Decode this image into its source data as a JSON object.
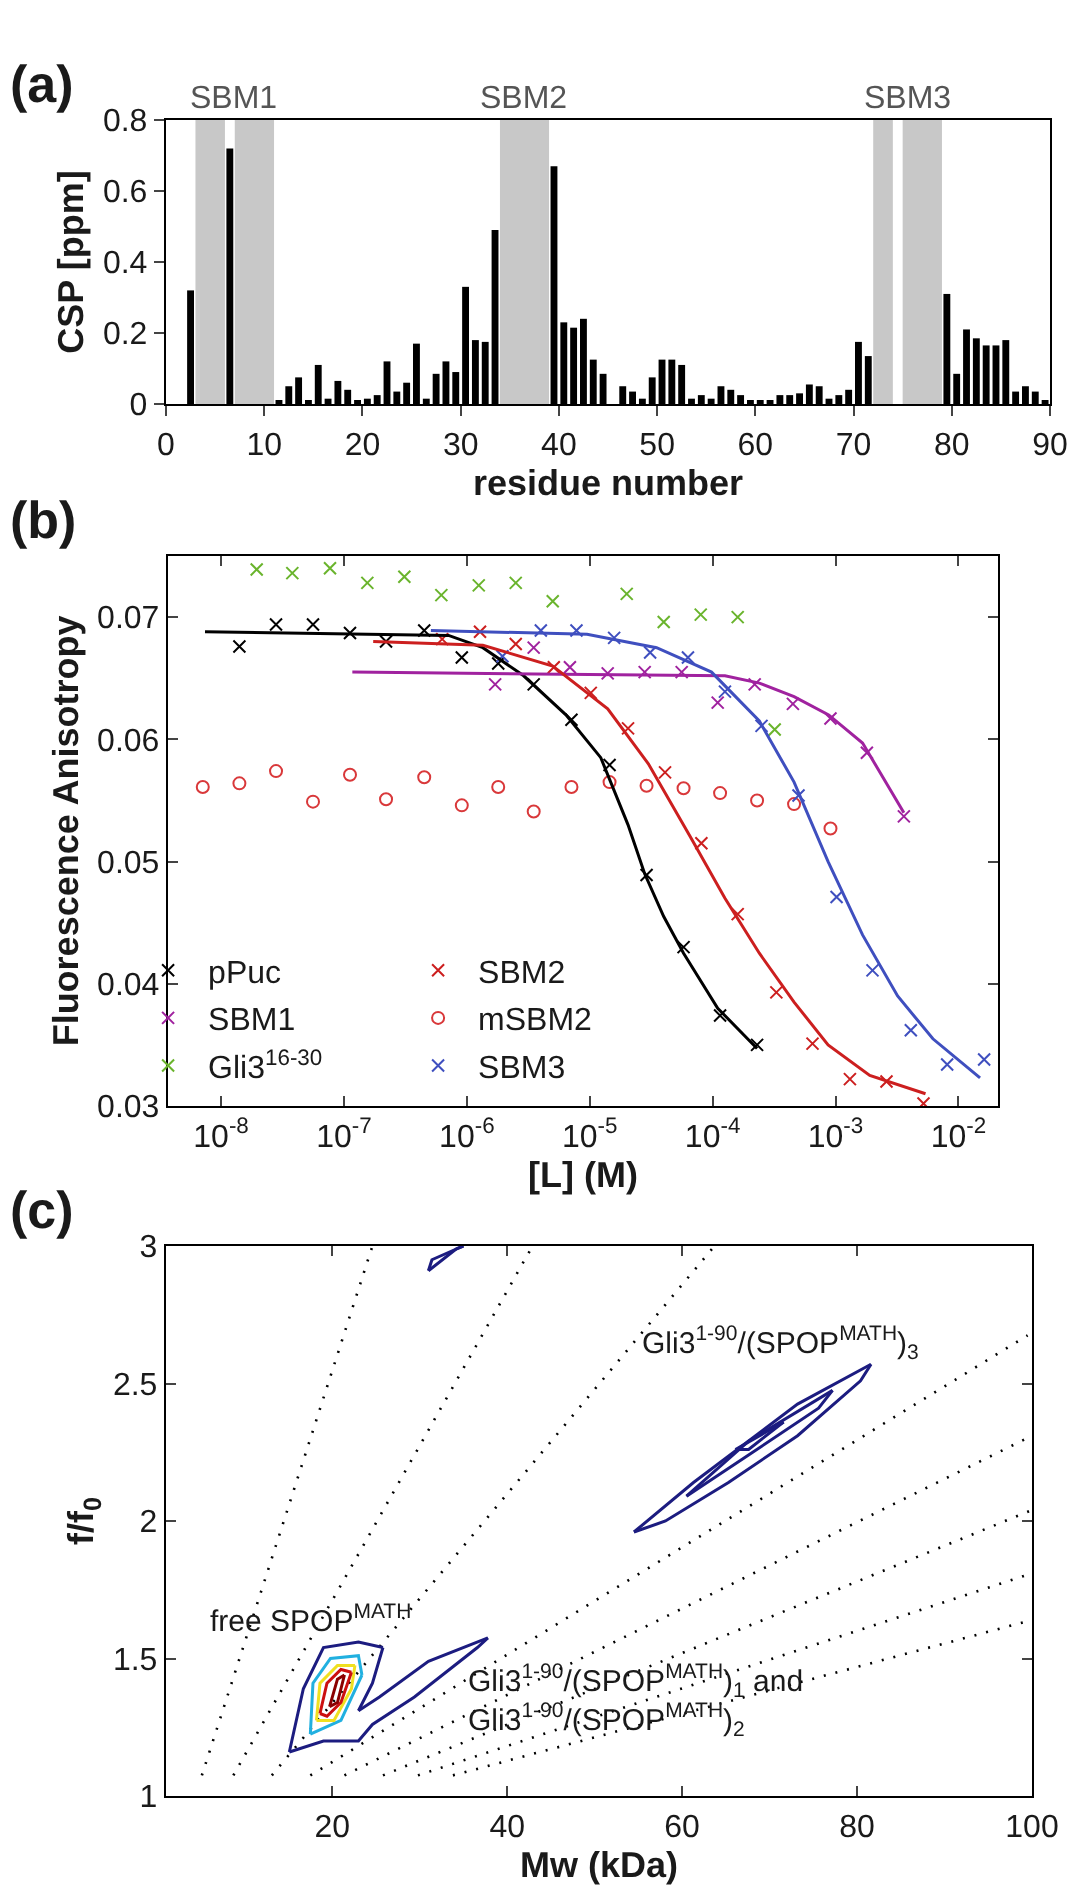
{
  "chart_data": [
    {
      "type": "bar",
      "annotations": [
        "(a)",
        {
          "text": "SBM1",
          "x": 7,
          "y": 0.8
        },
        {
          "text": "SBM2",
          "x": 36.5,
          "y": 0.8
        },
        {
          "text": "SBM3",
          "x": 75.5,
          "y": 0.8
        }
      ],
      "xlabel": "residue number",
      "ylabel": "CSP [ppm]",
      "x": [
        2.5,
        6.5,
        11.5,
        12.5,
        13.5,
        14.5,
        15.5,
        16.5,
        17.5,
        18.5,
        19.5,
        20.5,
        21.5,
        22.5,
        23.5,
        24.5,
        25.5,
        26.5,
        27.5,
        28.5,
        29.5,
        30.5,
        31.5,
        32.5,
        33.5,
        39.5,
        40.5,
        41.5,
        42.5,
        43.5,
        44.5,
        46.5,
        47.5,
        48.5,
        49.5,
        50.5,
        51.5,
        52.5,
        53.5,
        54.5,
        55.5,
        56.5,
        57.5,
        58.5,
        59.5,
        60.5,
        61.5,
        62.5,
        63.5,
        64.5,
        65.5,
        66.5,
        67.5,
        68.5,
        69.5,
        70.5,
        71.5,
        79.5,
        80.5,
        81.5,
        82.5,
        83.5,
        84.5,
        85.5,
        86.5,
        87.5,
        88.5,
        89.5
      ],
      "values": [
        0.32,
        0.72,
        0.01,
        0.05,
        0.075,
        0.01,
        0.11,
        0.015,
        0.065,
        0.04,
        0.008,
        0.015,
        0.025,
        0.12,
        0.035,
        0.06,
        0.17,
        0.015,
        0.085,
        0.12,
        0.09,
        0.33,
        0.18,
        0.175,
        0.49,
        0.67,
        0.23,
        0.215,
        0.24,
        0.125,
        0.085,
        0.05,
        0.035,
        0.015,
        0.075,
        0.125,
        0.125,
        0.11,
        0.015,
        0.025,
        0.015,
        0.05,
        0.04,
        0.025,
        0.01,
        0.008,
        0.008,
        0.025,
        0.025,
        0.03,
        0.055,
        0.05,
        0.015,
        0.025,
        0.04,
        0.175,
        0.135,
        0.31,
        0.085,
        0.21,
        0.185,
        0.165,
        0.165,
        0.18,
        0.035,
        0.05,
        0.035,
        0.01
      ],
      "color": "#000000",
      "bands": [
        {
          "axis": "x",
          "from": 3,
          "to": 6,
          "color": "#c8c8c8"
        },
        {
          "axis": "x",
          "from": 7,
          "to": 11,
          "color": "#c8c8c8"
        },
        {
          "axis": "x",
          "from": 34,
          "to": 39,
          "color": "#c8c8c8"
        },
        {
          "axis": "x",
          "from": 72,
          "to": 74,
          "color": "#c8c8c8"
        },
        {
          "axis": "x",
          "from": 75,
          "to": 79,
          "color": "#c8c8c8"
        }
      ],
      "xlim": [
        0,
        90
      ],
      "xticks": [
        0,
        10,
        20,
        30,
        40,
        50,
        60,
        70,
        80,
        90
      ],
      "ylim": [
        0,
        0.8
      ],
      "yticks": [
        0,
        0.2,
        0.4,
        0.6,
        0.8
      ],
      "grid": false,
      "legend": false
    },
    {
      "type": "scatter",
      "annotations": [
        "(b)"
      ],
      "xlabel": "[L] (M)",
      "ylabel": "Fluorescence Anisotropy",
      "log": "x",
      "grid": false,
      "legend": "bottom left",
      "xlim": [
        3.7e-09,
        0.021
      ],
      "xticks": [
        {
          "value": 1e-08,
          "label": "10$^{-8}$"
        },
        {
          "value": 1e-07,
          "label": "10$^{-7}$"
        },
        {
          "value": 1e-06,
          "label": "10$^{-6}$"
        },
        {
          "value": 1e-05,
          "label": "10$^{-5}$"
        },
        {
          "value": 0.0001,
          "label": "10$^{-4}$"
        },
        {
          "value": 0.001,
          "label": "10$^{-3}$"
        },
        {
          "value": 0.01,
          "label": "10$^{-2}$"
        }
      ],
      "ylim": [
        0.03,
        0.075
      ],
      "yticks": [
        0.03,
        0.04,
        0.05,
        0.06,
        0.07
      ],
      "series": [
        {
          "name": "pPuc",
          "color": "#000000",
          "marker": "cross",
          "x": [
            1.41e-08,
            2.8e-08,
            5.6e-08,
            1.12e-07,
            2.2e-07,
            4.5e-07,
            9.1e-07,
            1.8e-06,
            3.5e-06,
            7.1e-06,
            1.45e-05,
            2.9e-05,
            5.8e-05,
            0.000115,
            0.00023
          ],
          "values": [
            0.0676,
            0.0694,
            0.0694,
            0.0687,
            0.068,
            0.0689,
            0.0667,
            0.0662,
            0.0645,
            0.0616,
            0.0579,
            0.0489,
            0.043,
            0.0374,
            0.035
          ]
        },
        {
          "name": "SBM1",
          "color": "#a0229f",
          "marker": "cross",
          "x": [
            1.7e-06,
            3.5e-06,
            6.9e-06,
            1.4e-05,
            2.8e-05,
            5.6e-05,
            0.00011,
            0.00022,
            0.00045,
            0.00091,
            0.0018,
            0.0036
          ],
          "values": [
            0.0645,
            0.0675,
            0.0659,
            0.0654,
            0.0655,
            0.0655,
            0.063,
            0.0645,
            0.0629,
            0.0617,
            0.0589,
            0.0537
          ]
        },
        {
          "name": "Gli3$^{16-30}$",
          "color": "#6ab42d",
          "marker": "cross",
          "x": [
            1.95e-08,
            3.8e-08,
            7.7e-08,
            1.55e-07,
            3.1e-07,
            6.2e-07,
            1.25e-06,
            2.5e-06,
            5e-06,
            2e-05,
            4e-05,
            8e-05,
            0.00016,
            0.00032
          ],
          "values": [
            0.0739,
            0.0736,
            0.074,
            0.0728,
            0.0733,
            0.0718,
            0.0726,
            0.0728,
            0.0713,
            0.0719,
            0.0696,
            0.0702,
            0.07,
            0.0608
          ]
        },
        {
          "name": "SBM2",
          "color": "#cc1f1f",
          "marker": "cross",
          "x": [
            6.3e-07,
            1.28e-06,
            2.5e-06,
            5.1e-06,
            1.02e-05,
            2.05e-05,
            4.1e-05,
            8.1e-05,
            0.00016,
            0.00033,
            0.00065,
            0.00131,
            0.0026,
            0.0052
          ],
          "values": [
            0.0682,
            0.0688,
            0.0678,
            0.0659,
            0.0638,
            0.0609,
            0.0573,
            0.0515,
            0.0457,
            0.0393,
            0.0351,
            0.0322,
            0.032,
            0.0302
          ]
        },
        {
          "name": "mSBM2",
          "color": "#d9383a",
          "marker": "circle",
          "x": [
            7.1e-09,
            1.41e-08,
            2.8e-08,
            5.6e-08,
            1.12e-07,
            2.2e-07,
            4.5e-07,
            9.1e-07,
            1.8e-06,
            3.5e-06,
            7.1e-06,
            1.45e-05,
            2.9e-05,
            5.8e-05,
            0.000115,
            0.00023,
            0.00046,
            0.00091
          ],
          "values": [
            0.0561,
            0.0564,
            0.0574,
            0.0549,
            0.0571,
            0.0551,
            0.0569,
            0.0546,
            0.0561,
            0.0541,
            0.0561,
            0.0565,
            0.0562,
            0.056,
            0.0556,
            0.055,
            0.0547,
            0.0527
          ]
        },
        {
          "name": "SBM3",
          "color": "#3f4fbf",
          "marker": "cross",
          "x": [
            1.95e-06,
            4e-06,
            7.8e-06,
            1.58e-05,
            3.1e-05,
            6.3e-05,
            0.000126,
            0.00025,
            0.0005,
            0.00102,
            0.002,
            0.0041,
            0.0081,
            0.0162
          ],
          "values": [
            0.0668,
            0.0689,
            0.0689,
            0.0683,
            0.0671,
            0.0667,
            0.0639,
            0.0611,
            0.0554,
            0.0471,
            0.0411,
            0.0362,
            0.0334,
            0.0338
          ]
        },
        {
          "type": "line",
          "color": "#000000",
          "marker": "none",
          "x": [
            7.4e-09,
            7.1e-07,
            1.35e-06,
            2.9e-06,
            6.4e-06,
            1.23e-05,
            2.05e-05,
            2.8e-05,
            4e-05,
            5.8e-05,
            0.00011,
            0.00023
          ],
          "values": [
            0.0688,
            0.0685,
            0.0675,
            0.0652,
            0.062,
            0.0585,
            0.053,
            0.049,
            0.0455,
            0.0425,
            0.038,
            0.0347
          ]
        },
        {
          "type": "line",
          "color": "#a0229f",
          "marker": "none",
          "x": [
            1.17e-07,
            0.000126,
            0.00024,
            0.00046,
            0.00088,
            0.00166,
            0.0036
          ],
          "values": [
            0.0655,
            0.0652,
            0.0646,
            0.0635,
            0.062,
            0.0597,
            0.054
          ]
        },
        {
          "type": "line",
          "color": "#cc1f1f",
          "marker": "none",
          "x": [
            1.73e-07,
            1.35e-06,
            5e-06,
            1.4e-05,
            3e-05,
            6.6e-05,
            0.000126,
            0.00024,
            0.00046,
            0.00087,
            0.0019,
            0.0054
          ],
          "values": [
            0.068,
            0.0677,
            0.066,
            0.0625,
            0.058,
            0.052,
            0.047,
            0.0425,
            0.0385,
            0.035,
            0.0325,
            0.031
          ]
        },
        {
          "type": "line",
          "color": "#3f4fbf",
          "marker": "none",
          "x": [
            5.1e-07,
            9.5e-06,
            3.5e-05,
            9.8e-05,
            0.00024,
            0.00046,
            0.00087,
            0.00166,
            0.0032,
            0.0062,
            0.015
          ],
          "values": [
            0.0689,
            0.0686,
            0.0675,
            0.0655,
            0.0615,
            0.0565,
            0.05,
            0.044,
            0.039,
            0.0355,
            0.0323
          ]
        }
      ]
    },
    {
      "type": "line",
      "annotations": [
        "(c)",
        "free SPOP$^{MATH}$",
        "Gli3$^{1-90}$/(SPOP$^{MATH}$)$_{3}$",
        "Gli3$^{1-90}$/(SPOP$^{MATH}$)$_{1}$ and\nGli3$^{1-90}$/(SPOP$^{MATH}$)$_{2}$"
      ],
      "xlabel": "Mw (kDa)",
      "ylabel": "f/f$_{0}$",
      "grid": false,
      "legend": false,
      "marker": "none",
      "xlim": [
        1,
        100
      ],
      "xticks": [
        20,
        40,
        60,
        80,
        100
      ],
      "ylim": [
        1,
        3
      ],
      "yticks": [
        1,
        1.5,
        2,
        2.5,
        3
      ],
      "series": [
        {
          "color": "#000000",
          "line_style": "dotted",
          "x": [
            5.1,
            24.6
          ],
          "values": [
            1.075,
            3
          ]
        },
        {
          "color": "#000000",
          "line_style": "dotted",
          "x": [
            8.7,
            42.9
          ],
          "values": [
            1.075,
            3
          ]
        },
        {
          "color": "#000000",
          "line_style": "dotted",
          "x": [
            13.1,
            63.7
          ],
          "values": [
            1.075,
            3
          ]
        },
        {
          "color": "#000000",
          "line_style": "dotted",
          "x": [
            17.5,
            99.5
          ],
          "values": [
            1.075,
            2.675
          ]
        },
        {
          "color": "#000000",
          "line_style": "dotted",
          "x": [
            21.4,
            100
          ],
          "values": [
            1.075,
            2.31
          ]
        },
        {
          "color": "#000000",
          "line_style": "dotted",
          "x": [
            25.8,
            100
          ],
          "values": [
            1.075,
            2.04
          ]
        },
        {
          "color": "#000000",
          "line_style": "dotted",
          "x": [
            29.8,
            100
          ],
          "values": [
            1.075,
            1.81
          ]
        },
        {
          "color": "#000000",
          "line_style": "dotted",
          "x": [
            33.8,
            100
          ],
          "values": [
            1.075,
            1.64
          ]
        },
        {
          "color": "#1c1c80",
          "x": [
            15.1,
            16.7,
            19.0,
            23.0,
            25.8
          ],
          "values": [
            1.16,
            1.39,
            1.54,
            1.56,
            1.54
          ]
        },
        {
          "color": "#1c1c80",
          "x": [
            23.0,
            24.6,
            25.8
          ],
          "values": [
            1.31,
            1.41,
            1.54
          ]
        },
        {
          "color": "#1c1c80",
          "x": [
            23.0,
            25.4,
            31.0,
            37.8
          ],
          "values": [
            1.31,
            1.36,
            1.49,
            1.575
          ]
        },
        {
          "color": "#1c1c80",
          "x": [
            15.1,
            19.0,
            23.0,
            24.6,
            29.4,
            36.6,
            37.8
          ],
          "values": [
            1.16,
            1.2,
            1.2,
            1.26,
            1.36,
            1.54,
            1.575
          ]
        },
        {
          "color": "#21b0e0",
          "x": [
            17.5,
            17.8,
            19.8,
            23.0,
            23.4
          ],
          "values": [
            1.225,
            1.41,
            1.5,
            1.51,
            1.44
          ]
        },
        {
          "color": "#21b0e0",
          "x": [
            17.5,
            21.0,
            23.4
          ],
          "values": [
            1.225,
            1.275,
            1.44
          ]
        },
        {
          "color": "#f0e020",
          "x": [
            18.2,
            18.6,
            20.6,
            22.6
          ],
          "values": [
            1.275,
            1.41,
            1.475,
            1.475
          ]
        },
        {
          "color": "#f0e020",
          "x": [
            18.2,
            20.2,
            22.2,
            22.6
          ],
          "values": [
            1.275,
            1.275,
            1.39,
            1.475
          ]
        },
        {
          "color": "#cc1010",
          "x": [
            18.6,
            19.4,
            21.0,
            22.2
          ],
          "values": [
            1.3,
            1.41,
            1.46,
            1.45
          ]
        },
        {
          "color": "#cc1010",
          "x": [
            18.6,
            19.4,
            21.0,
            22.2
          ],
          "values": [
            1.3,
            1.29,
            1.34,
            1.45
          ]
        },
        {
          "color": "#8b0000",
          "x": [
            19.7,
            20.6,
            21.4
          ],
          "values": [
            1.325,
            1.425,
            1.44
          ]
        },
        {
          "color": "#8b0000",
          "x": [
            19.7,
            20.6,
            21.4
          ],
          "values": [
            1.325,
            1.34,
            1.44
          ]
        },
        {
          "color": "#1c1c80",
          "x": [
            54.5,
            61.3,
            73.2,
            81.6
          ],
          "values": [
            1.96,
            2.14,
            2.425,
            2.57
          ]
        },
        {
          "color": "#1c1c80",
          "x": [
            54.5,
            58.1,
            65.3,
            73.2,
            80.4,
            81.6
          ],
          "values": [
            1.96,
            2.0,
            2.14,
            2.31,
            2.51,
            2.57
          ]
        },
        {
          "color": "#1c1c80",
          "x": [
            60.5,
            67.6,
            77.2
          ],
          "values": [
            2.09,
            2.29,
            2.475
          ]
        },
        {
          "color": "#1c1c80",
          "x": [
            60.5,
            67.6,
            75.6,
            77.2
          ],
          "values": [
            2.09,
            2.24,
            2.41,
            2.475
          ]
        },
        {
          "color": "#1c1c80",
          "x": [
            66.1,
            71.6
          ],
          "values": [
            2.26,
            2.36
          ]
        },
        {
          "color": "#1c1c80",
          "x": [
            66.1,
            67.6,
            71.6
          ],
          "values": [
            2.26,
            2.26,
            2.36
          ]
        },
        {
          "color": "#1c1c80",
          "x": [
            31.0,
            34.2,
            35.0
          ],
          "values": [
            2.91,
            2.99,
            3
          ]
        },
        {
          "color": "#1c1c80",
          "x": [
            31.0,
            31.4,
            35.0
          ],
          "values": [
            2.91,
            2.95,
            3
          ]
        }
      ]
    }
  ]
}
